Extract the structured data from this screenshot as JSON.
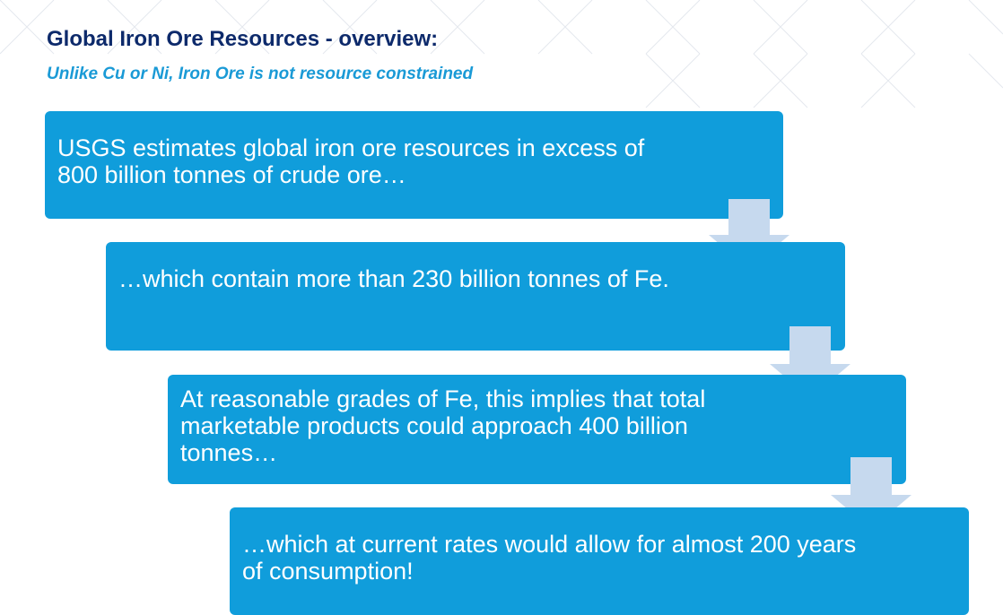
{
  "header": {
    "title": "Global Iron Ore Resources - overview:",
    "subtitle": "Unlike Cu or Ni, Iron Ore is not resource constrained"
  },
  "steps": [
    {
      "text": "USGS estimates global iron ore resources in excess of 800 billion tonnes of crude ore…"
    },
    {
      "text": "…which contain more than 230 billion tonnes of Fe."
    },
    {
      "text": "At reasonable grades of Fe, this implies that total marketable products could approach 400 billion tonnes…"
    },
    {
      "text": "…which at current rates would allow for almost 200 years of consumption!"
    }
  ]
}
